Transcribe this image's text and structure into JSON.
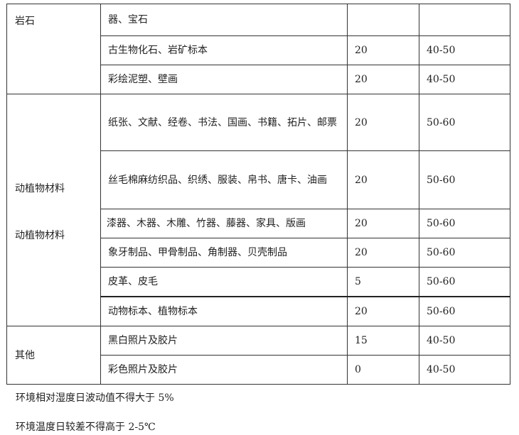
{
  "groups": [
    {
      "label": "岩石",
      "rows": [
        {
          "item": "器、宝石",
          "value1": "",
          "value2": ""
        },
        {
          "item": "古生物化石、岩矿标本",
          "value1": "20",
          "value2": "40-50"
        },
        {
          "item": "彩绘泥塑、壁画",
          "value1": "20",
          "value2": "40-50"
        }
      ]
    },
    {
      "label": "动植物材料",
      "label_repeat": "动植物材料",
      "rows": [
        {
          "item": "纸张、文献、经卷、书法、国画、书籍、拓片、邮票",
          "value1": "20",
          "value2": "50-60"
        },
        {
          "item": "丝毛棉麻纺织品、织绣、服装、帛书、唐卡、油画",
          "value1": "20",
          "value2": "50-60"
        },
        {
          "item": "漆器、木器、木雕、竹器、藤器、家具、版画",
          "value1": "20",
          "value2": "50-60"
        },
        {
          "item": "象牙制品、甲骨制品、角制器、贝壳制品",
          "value1": "20",
          "value2": "50-60"
        },
        {
          "item": "皮革、皮毛",
          "value1": "5",
          "value2": "50-60"
        },
        {
          "item": "动物标本、植物标本",
          "value1": "20",
          "value2": "50-60"
        }
      ]
    },
    {
      "label": "其他",
      "rows": [
        {
          "item": "黑白照片及胶片",
          "value1": "15",
          "value2": "40-50"
        },
        {
          "item": "彩色照片及胶片",
          "value1": "0",
          "value2": "40-50"
        }
      ]
    }
  ],
  "notes": [
    "环境相对湿度日波动值不得大于 5%",
    "环境温度日较差不得高于 2-5℃"
  ]
}
